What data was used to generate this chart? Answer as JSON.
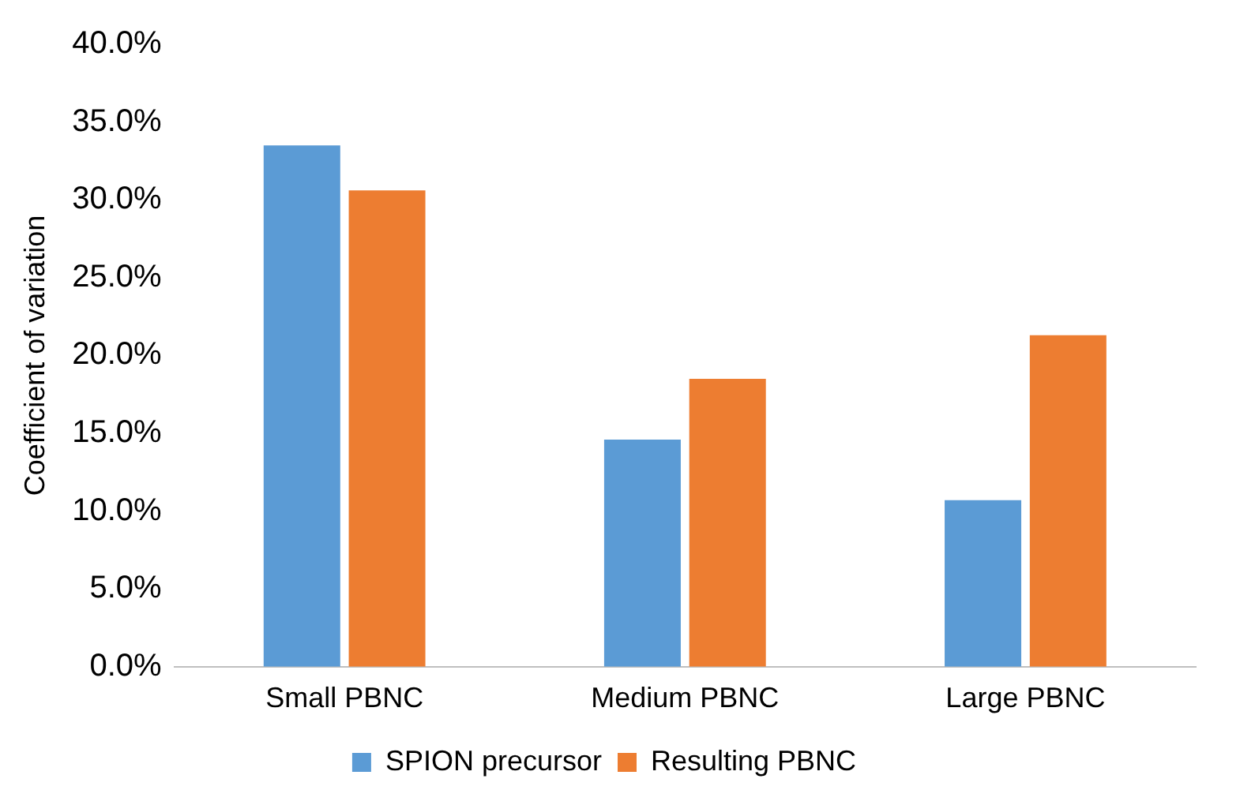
{
  "chart_data": {
    "type": "bar",
    "ylabel": "Coefficient of variation",
    "categories": [
      "Small PBNC",
      "Medium PBNC",
      "Large PBNC"
    ],
    "series": [
      {
        "name": "SPION precursor",
        "color": "#5b9bd5",
        "values": [
          33.5,
          14.6,
          10.7
        ]
      },
      {
        "name": "Resulting PBNC",
        "color": "#ed7d31",
        "values": [
          30.6,
          18.5,
          21.3
        ]
      }
    ],
    "ylim": [
      0,
      40
    ],
    "yticks": [
      {
        "value": 0,
        "label": "0.0%"
      },
      {
        "value": 5,
        "label": "5.0%"
      },
      {
        "value": 10,
        "label": "10.0%"
      },
      {
        "value": 15,
        "label": "15.0%"
      },
      {
        "value": 20,
        "label": "20.0%"
      },
      {
        "value": 25,
        "label": "25.0%"
      },
      {
        "value": 30,
        "label": "30.0%"
      },
      {
        "value": 35,
        "label": "35.0%"
      },
      {
        "value": 40,
        "label": "40.0%"
      }
    ],
    "grid": false,
    "legend": "bottom"
  }
}
